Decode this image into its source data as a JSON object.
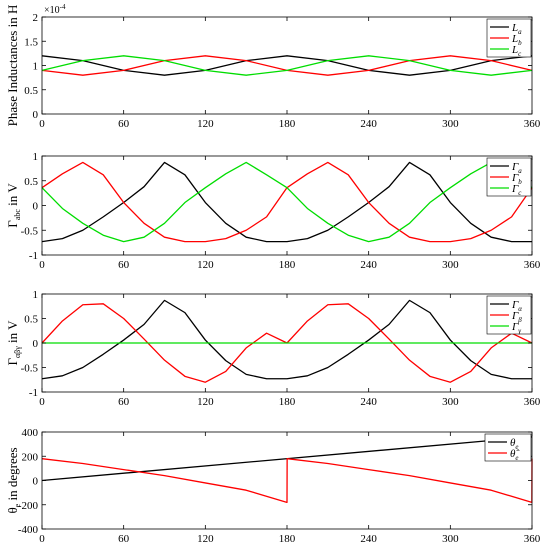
{
  "chart_data": [
    {
      "type": "line",
      "ylabel": "Phase Inductances in H",
      "exponent_label": "×10",
      "exponent_power": "-4",
      "xlim": [
        0,
        360
      ],
      "ylim": [
        0,
        2
      ],
      "xticks": [
        0,
        60,
        120,
        180,
        240,
        300,
        360
      ],
      "yticks": [
        0,
        0.5,
        1,
        1.5,
        2
      ],
      "ytick_labels": [
        "0",
        "0.5",
        "1",
        "1.5",
        "2"
      ],
      "grid": false,
      "legend_position": "top-right",
      "x": [
        0,
        30,
        60,
        90,
        120,
        150,
        180,
        210,
        240,
        270,
        300,
        330,
        360
      ],
      "series": [
        {
          "name": "L_a",
          "label_main": "L",
          "label_sub": "a",
          "color": "#000000",
          "values": [
            1.2,
            1.1,
            0.9,
            0.8,
            0.9,
            1.1,
            1.2,
            1.1,
            0.9,
            0.8,
            0.9,
            1.1,
            1.2
          ]
        },
        {
          "name": "L_b",
          "label_main": "L",
          "label_sub": "b",
          "color": "#ff0000",
          "values": [
            0.9,
            0.8,
            0.9,
            1.1,
            1.2,
            1.1,
            0.9,
            0.8,
            0.9,
            1.1,
            1.2,
            1.1,
            0.9
          ]
        },
        {
          "name": "L_c",
          "label_main": "L",
          "label_sub": "c",
          "color": "#00dd00",
          "values": [
            0.9,
            1.1,
            1.2,
            1.1,
            0.9,
            0.8,
            0.9,
            1.1,
            1.2,
            1.1,
            0.9,
            0.8,
            0.9
          ]
        }
      ]
    },
    {
      "type": "line",
      "ylabel_main": "Γ",
      "ylabel_sub": "abc",
      "ylabel_suffix": " in V",
      "xlim": [
        0,
        360
      ],
      "ylim": [
        -1,
        1
      ],
      "xticks": [
        0,
        60,
        120,
        180,
        240,
        300,
        360
      ],
      "yticks": [
        -1,
        -0.5,
        0,
        0.5,
        1
      ],
      "ytick_labels": [
        "-1",
        "-0.5",
        "0",
        "0.5",
        "1"
      ],
      "grid": false,
      "legend_position": "top-right",
      "x": [
        0,
        15,
        30,
        45,
        60,
        75,
        90,
        105,
        120,
        135,
        150,
        165,
        180,
        195,
        210,
        225,
        240,
        255,
        270,
        285,
        300,
        315,
        330,
        345,
        360
      ],
      "series": [
        {
          "name": "Γ_a",
          "label_main": "Γ",
          "label_sub": "a",
          "color": "#000000",
          "values": [
            -0.73,
            -0.67,
            -0.5,
            -0.23,
            0.06,
            0.38,
            0.87,
            0.62,
            0.06,
            -0.36,
            -0.64,
            -0.73,
            -0.73,
            -0.67,
            -0.5,
            -0.23,
            0.06,
            0.38,
            0.87,
            0.62,
            0.06,
            -0.36,
            -0.64,
            -0.73,
            -0.73
          ]
        },
        {
          "name": "Γ_b",
          "label_main": "Γ",
          "label_sub": "b",
          "color": "#ff0000",
          "values": [
            0.36,
            0.64,
            0.87,
            0.62,
            0.06,
            -0.36,
            -0.64,
            -0.73,
            -0.73,
            -0.67,
            -0.5,
            -0.23,
            0.36,
            0.64,
            0.87,
            0.62,
            0.06,
            -0.36,
            -0.64,
            -0.73,
            -0.73,
            -0.67,
            -0.5,
            -0.23,
            0.36
          ]
        },
        {
          "name": "Γ_c",
          "label_main": "Γ",
          "label_sub": "c",
          "color": "#00dd00",
          "values": [
            0.36,
            -0.06,
            -0.36,
            -0.6,
            -0.73,
            -0.64,
            -0.36,
            0.06,
            0.36,
            0.64,
            0.87,
            0.62,
            0.36,
            -0.06,
            -0.36,
            -0.6,
            -0.73,
            -0.64,
            -0.36,
            0.06,
            0.36,
            0.64,
            0.87,
            0.62,
            0.36
          ]
        }
      ]
    },
    {
      "type": "line",
      "ylabel_main": "Γ",
      "ylabel_sub": "αβγ",
      "ylabel_suffix": " in V",
      "xlim": [
        0,
        360
      ],
      "ylim": [
        -1,
        1
      ],
      "xticks": [
        0,
        60,
        120,
        180,
        240,
        300,
        360
      ],
      "yticks": [
        -1,
        -0.5,
        0,
        0.5,
        1
      ],
      "ytick_labels": [
        "-1",
        "-0.5",
        "0",
        "0.5",
        "1"
      ],
      "grid": false,
      "legend_position": "top-right",
      "x": [
        0,
        15,
        30,
        45,
        60,
        75,
        90,
        105,
        120,
        135,
        150,
        165,
        180,
        195,
        210,
        225,
        240,
        255,
        270,
        285,
        300,
        315,
        330,
        345,
        360
      ],
      "series": [
        {
          "name": "Γ_α",
          "label_main": "Γ",
          "label_sub": "α",
          "color": "#000000",
          "values": [
            -0.73,
            -0.67,
            -0.5,
            -0.23,
            0.06,
            0.38,
            0.87,
            0.62,
            0.06,
            -0.36,
            -0.64,
            -0.73,
            -0.73,
            -0.67,
            -0.5,
            -0.23,
            0.06,
            0.38,
            0.87,
            0.62,
            0.06,
            -0.36,
            -0.64,
            -0.73,
            -0.73
          ]
        },
        {
          "name": "Γ_β",
          "label_main": "Γ",
          "label_sub": "β",
          "color": "#ff0000",
          "values": [
            0,
            0.45,
            0.78,
            0.8,
            0.5,
            0.08,
            -0.35,
            -0.68,
            -0.8,
            -0.58,
            -0.1,
            0.2,
            0,
            0.45,
            0.78,
            0.8,
            0.5,
            0.08,
            -0.35,
            -0.68,
            -0.8,
            -0.58,
            -0.1,
            0.2,
            0
          ]
        },
        {
          "name": "Γ_γ",
          "label_main": "Γ",
          "label_sub": "γ",
          "color": "#00dd00",
          "values": [
            0,
            0,
            0,
            0,
            0,
            0,
            0,
            0,
            0,
            0,
            0,
            0,
            0,
            0,
            0,
            0,
            0,
            0,
            0,
            0,
            0,
            0,
            0,
            0,
            0
          ]
        }
      ]
    },
    {
      "type": "line",
      "ylabel_main": "θ",
      "ylabel_sub": "e",
      "ylabel_suffix": " in degrees",
      "xlim": [
        0,
        360
      ],
      "ylim": [
        -400,
        400
      ],
      "xticks": [
        0,
        60,
        120,
        180,
        240,
        300,
        360
      ],
      "yticks": [
        -400,
        -200,
        0,
        200,
        400
      ],
      "ytick_labels": [
        "-400",
        "-200",
        "0",
        "200",
        "400"
      ],
      "grid": false,
      "legend_position": "top-right",
      "series": [
        {
          "name": "θ_e",
          "label_main": "θ",
          "label_sub": "e",
          "color": "#000000",
          "x": [
            0,
            360
          ],
          "values": [
            0,
            360
          ]
        },
        {
          "name": "θ̂_e",
          "label_main": "θ̂",
          "label_sub": "e",
          "color": "#ff0000",
          "x": [
            0,
            30,
            60,
            90,
            120,
            150,
            179.9,
            180,
            180.1,
            210,
            240,
            270,
            300,
            330,
            359.9,
            360
          ],
          "values": [
            180,
            140,
            90,
            40,
            -20,
            -80,
            -180,
            -180,
            180,
            140,
            90,
            40,
            -20,
            -80,
            -180,
            180
          ]
        }
      ]
    }
  ]
}
